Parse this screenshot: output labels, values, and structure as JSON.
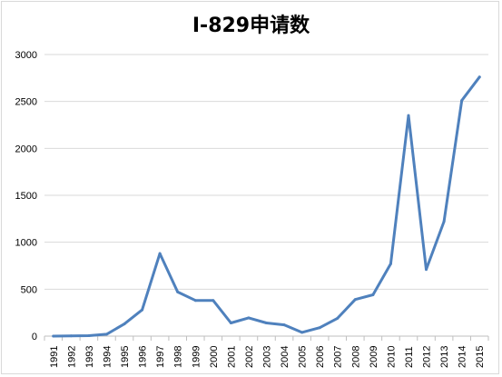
{
  "chart_data": {
    "type": "line",
    "title": "I-829申请数",
    "xlabel": "",
    "ylabel": "",
    "ylim": [
      0,
      3000
    ],
    "yticks": [
      0,
      500,
      1000,
      1500,
      2000,
      2500,
      3000
    ],
    "grid": "horizontal",
    "legend": "none",
    "x": [
      "1991",
      "1992",
      "1993",
      "1994",
      "1995",
      "1996",
      "1997",
      "1998",
      "1999",
      "2000",
      "2001",
      "2002",
      "2003",
      "2004",
      "2005",
      "2006",
      "2007",
      "2008",
      "2009",
      "2010",
      "2011",
      "2012",
      "2013",
      "2014",
      "2015"
    ],
    "series": [
      {
        "values": [
          0,
          3,
          5,
          20,
          130,
          280,
          880,
          470,
          380,
          380,
          140,
          195,
          140,
          120,
          40,
          90,
          190,
          390,
          440,
          770,
          2350,
          710,
          1220,
          2510,
          2760
        ],
        "color": "#4f81bd"
      }
    ],
    "colors": {
      "grid": "#d9d9d9",
      "axis": "#bfbfbf"
    }
  }
}
